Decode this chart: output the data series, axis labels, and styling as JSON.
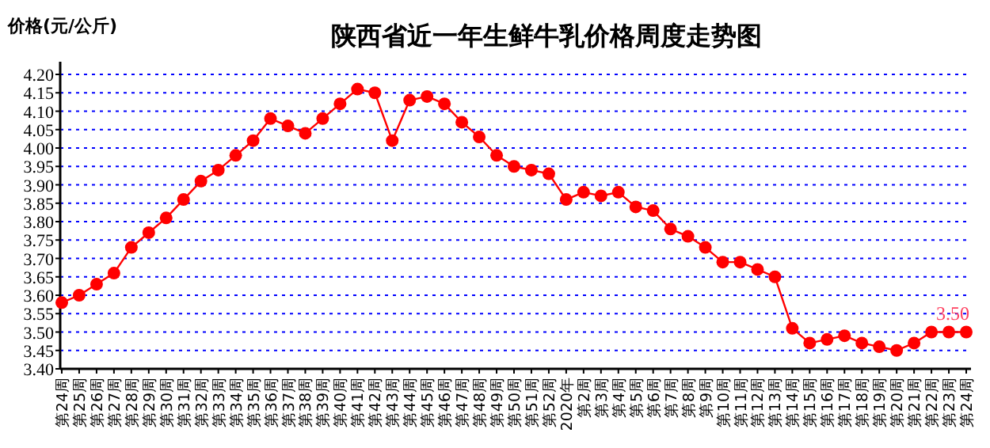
{
  "chart_data": {
    "type": "line",
    "title": "陕西省近一年生鲜牛乳价格周度走势图",
    "ylabel": "价格(元/公斤)",
    "categories": [
      "第24周",
      "第25周",
      "第26周",
      "第27周",
      "第28周",
      "第29周",
      "第30周",
      "第31周",
      "第32周",
      "第33周",
      "第34周",
      "第35周",
      "第36周",
      "第37周",
      "第38周",
      "第39周",
      "第40周",
      "第41周",
      "第42周",
      "第43周",
      "第44周",
      "第45周",
      "第46周",
      "第47周",
      "第48周",
      "第49周",
      "第50周",
      "第51周",
      "第52周",
      "2020年",
      "第2周",
      "第3周",
      "第4周",
      "第5周",
      "第6周",
      "第7周",
      "第8周",
      "第9周",
      "第10周",
      "第11周",
      "第12周",
      "第13周",
      "第14周",
      "第15周",
      "第16周",
      "第17周",
      "第18周",
      "第19周",
      "第20周",
      "第21周",
      "第22周",
      "第23周",
      "第24周"
    ],
    "values": [
      3.58,
      3.6,
      3.63,
      3.66,
      3.73,
      3.77,
      3.81,
      3.86,
      3.91,
      3.94,
      3.98,
      4.02,
      4.08,
      4.06,
      4.04,
      4.08,
      4.12,
      4.16,
      4.15,
      4.02,
      4.13,
      4.14,
      4.12,
      4.07,
      4.03,
      3.98,
      3.95,
      3.94,
      3.93,
      3.86,
      3.88,
      3.87,
      3.88,
      3.84,
      3.83,
      3.78,
      3.76,
      3.73,
      3.69,
      3.69,
      3.67,
      3.65,
      3.51,
      3.47,
      3.48,
      3.49,
      3.47,
      3.46,
      3.45,
      3.47,
      3.5,
      3.5,
      3.5
    ],
    "value_labels": [
      null,
      null,
      null,
      null,
      null,
      null,
      null,
      null,
      null,
      null,
      null,
      null,
      null,
      null,
      null,
      null,
      null,
      null,
      null,
      null,
      null,
      null,
      null,
      null,
      null,
      null,
      null,
      null,
      null,
      null,
      null,
      null,
      null,
      null,
      null,
      null,
      null,
      null,
      null,
      null,
      null,
      null,
      null,
      null,
      null,
      null,
      null,
      null,
      null,
      null,
      null,
      null,
      "3.50"
    ],
    "color": "#ff0000",
    "marker": "circle",
    "line_style": "solid",
    "grid": "y",
    "ylim": [
      3.4,
      4.2
    ],
    "yticks": [
      {
        "value": 3.4,
        "label": "3.40"
      },
      {
        "value": 3.45,
        "label": "3.45"
      },
      {
        "value": 3.5,
        "label": "3.50"
      },
      {
        "value": 3.55,
        "label": "3.55"
      },
      {
        "value": 3.6,
        "label": "3.60"
      },
      {
        "value": 3.65,
        "label": "3.65"
      },
      {
        "value": 3.7,
        "label": "3.70"
      },
      {
        "value": 3.75,
        "label": "3.75"
      },
      {
        "value": 3.8,
        "label": "3.80"
      },
      {
        "value": 3.85,
        "label": "3.85"
      },
      {
        "value": 3.9,
        "label": "3.90"
      },
      {
        "value": 3.95,
        "label": "3.95"
      },
      {
        "value": 4.0,
        "label": "4.00"
      },
      {
        "value": 4.05,
        "label": "4.05"
      },
      {
        "value": 4.1,
        "label": "4.10"
      },
      {
        "value": 4.15,
        "label": "4.15"
      },
      {
        "value": 4.2,
        "label": "4.20"
      }
    ]
  }
}
